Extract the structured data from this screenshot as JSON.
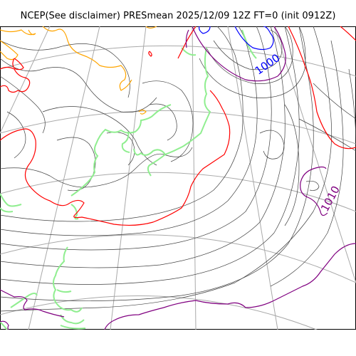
{
  "title": "NCEP(See disclaimer) PRESmean 2025/12/09 12Z FT=0 (init 0912Z)",
  "colors": {
    "coastline": "#90ee90",
    "graticule": "#a9a9a9",
    "isobar_minor": "#404040",
    "isobar_996": "#0000ff",
    "isobar_1000": "#800080",
    "isobar_1004": "#ff0000",
    "isobar_1008": "#ffa500",
    "isobar_1010": "#800080"
  },
  "labels": {
    "low_contour": "1000",
    "east_contour": "1010"
  }
}
